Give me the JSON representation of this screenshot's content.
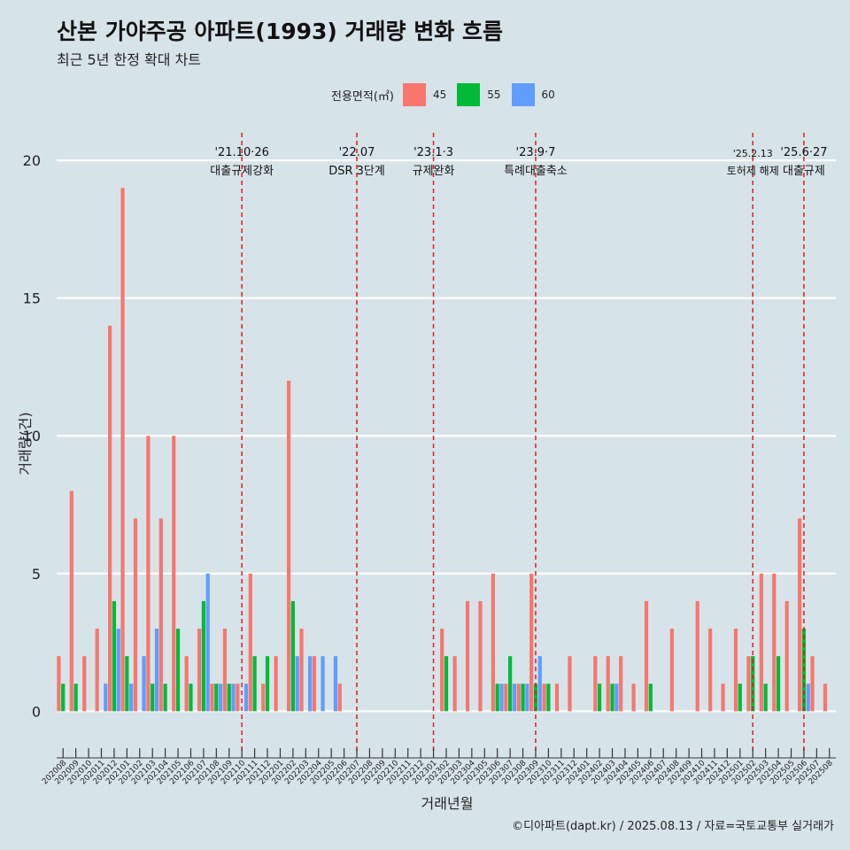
{
  "title": "산본 가야주공 아파트(1993) 거래량 변화 흐름",
  "subtitle": "최근 5년 한정 확대 차트",
  "caption": "©디아파트(dapt.kr) / 2025.08.13 / 자료=국토교통부 실거래가",
  "legend": {
    "title": "전용면적(㎡)",
    "items": [
      {
        "label": "45",
        "color": "#f8766d"
      },
      {
        "label": "55",
        "color": "#00ba38"
      },
      {
        "label": "60",
        "color": "#619cff"
      }
    ]
  },
  "chart_data": {
    "type": "bar",
    "xlabel": "거래년월",
    "ylabel": "거래량(건)",
    "ylim": [
      -1.5,
      21
    ],
    "yticks": [
      0,
      5,
      10,
      15,
      20
    ],
    "categories": [
      "202008",
      "202009",
      "202010",
      "202011",
      "202012",
      "202101",
      "202102",
      "202103",
      "202104",
      "202105",
      "202106",
      "202107",
      "202108",
      "202109",
      "202110",
      "202111",
      "202112",
      "202201",
      "202202",
      "202203",
      "202204",
      "202205",
      "202206",
      "202207",
      "202208",
      "202209",
      "202210",
      "202211",
      "202212",
      "202301",
      "202302",
      "202303",
      "202304",
      "202305",
      "202306",
      "202307",
      "202308",
      "202309",
      "202310",
      "202311",
      "202312",
      "202401",
      "202402",
      "202403",
      "202404",
      "202405",
      "202406",
      "202407",
      "202408",
      "202409",
      "202410",
      "202411",
      "202412",
      "202501",
      "202502",
      "202503",
      "202504",
      "202505",
      "202506",
      "202507",
      "202508"
    ],
    "series": [
      {
        "name": "45",
        "color": "#f8766d",
        "values": [
          2,
          8,
          2,
          3,
          14,
          19,
          7,
          10,
          7,
          10,
          2,
          3,
          1,
          3,
          1,
          5,
          1,
          2,
          12,
          3,
          2,
          0,
          1,
          0,
          0,
          0,
          0,
          0,
          0,
          0,
          3,
          2,
          4,
          4,
          5,
          1,
          1,
          5,
          1,
          1,
          2,
          0,
          2,
          2,
          2,
          1,
          4,
          0,
          3,
          0,
          4,
          3,
          1,
          3,
          2,
          5,
          5,
          4,
          7,
          2,
          1
        ]
      },
      {
        "name": "55",
        "color": "#00ba38",
        "values": [
          1,
          1,
          0,
          0,
          4,
          2,
          0,
          1,
          1,
          3,
          1,
          4,
          1,
          1,
          0,
          2,
          2,
          0,
          4,
          0,
          0,
          0,
          0,
          0,
          0,
          0,
          0,
          0,
          0,
          0,
          2,
          0,
          0,
          0,
          1,
          2,
          1,
          1,
          1,
          0,
          0,
          0,
          1,
          1,
          0,
          0,
          1,
          0,
          0,
          0,
          0,
          0,
          0,
          1,
          2,
          1,
          2,
          0,
          3,
          0,
          0
        ]
      },
      {
        "name": "60",
        "color": "#619cff",
        "values": [
          0,
          0,
          0,
          1,
          3,
          1,
          2,
          3,
          0,
          0,
          0,
          5,
          1,
          1,
          1,
          0,
          0,
          0,
          2,
          2,
          2,
          2,
          0,
          0,
          0,
          0,
          0,
          0,
          0,
          0,
          0,
          0,
          0,
          0,
          1,
          1,
          1,
          2,
          0,
          0,
          0,
          0,
          0,
          1,
          0,
          0,
          0,
          0,
          0,
          0,
          0,
          0,
          0,
          0,
          0,
          0,
          0,
          0,
          1,
          0,
          0
        ]
      }
    ],
    "annotations": [
      {
        "month": "202110",
        "date": "'21.10·26",
        "label": "대출규제강화"
      },
      {
        "month": "202207",
        "date": "'22.07",
        "label": "DSR 3단계"
      },
      {
        "month": "202301",
        "date": "'23.1·3",
        "label": "규제완화"
      },
      {
        "month": "202309",
        "date": "'23.9·7",
        "label": "특례대출축소"
      },
      {
        "month": "202502",
        "date": "'25.2.13",
        "label": "토허제 해제"
      },
      {
        "month": "202506",
        "date": "'25.6·27",
        "label": "대출규제"
      }
    ],
    "grid": true
  }
}
